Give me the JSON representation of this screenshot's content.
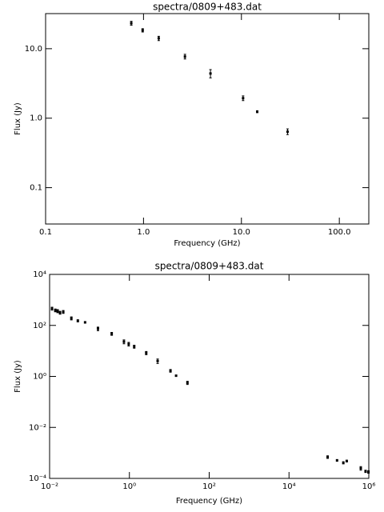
{
  "chart_data": [
    {
      "type": "scatter",
      "title": "spectra/0809+483.dat",
      "x_label": "Frequency (GHz)",
      "y_label": "Flux (Jy)",
      "log_x": true,
      "log_y": true,
      "color": "#000000",
      "x": [
        0.75,
        0.98,
        1.43,
        2.65,
        4.83,
        10.4,
        14.5,
        29.6
      ],
      "values": [
        23.3,
        18.4,
        14.1,
        7.7,
        4.4,
        1.94,
        1.24,
        0.64
      ],
      "errors": [
        1.5,
        1.0,
        1.0,
        0.6,
        0.6,
        0.15,
        0.04,
        0.06
      ],
      "xlim": [
        0.1,
        200
      ],
      "ylim": [
        0.03,
        32
      ],
      "xticks": [
        0.1,
        {
          "value": 1,
          "label": "1.0"
        },
        {
          "value": 10,
          "label": "10.0"
        },
        {
          "value": 100,
          "label": "100.0"
        }
      ],
      "yticks": [
        0.1,
        {
          "value": 1,
          "label": "1.0"
        },
        {
          "value": 10,
          "label": "10.0"
        }
      ]
    },
    {
      "type": "scatter",
      "title": "spectra/0809+483.dat",
      "x_label": "Frequency (GHz)",
      "y_label": "Flux (Jy)",
      "log_x": true,
      "log_y": true,
      "color": "#000000",
      "x": [
        0.0115,
        0.0139,
        0.0159,
        0.0183,
        0.022,
        0.0351,
        0.051,
        0.0775,
        0.163,
        0.36,
        0.73,
        0.96,
        1.32,
        2.64,
        5.1,
        10.7,
        14.8,
        28.5,
        93000,
        160000,
        230000,
        280000,
        630000,
        830000,
        980000
      ],
      "values": [
        457,
        390,
        365,
        316,
        340,
        190,
        152,
        132,
        74,
        47,
        23,
        18.5,
        14.8,
        8.3,
        4.0,
        1.66,
        1.07,
        0.56,
        0.00069,
        0.00051,
        0.00041,
        0.00048,
        0.00025,
        0.00019,
        0.00018
      ],
      "errors": [
        60,
        50,
        50,
        40,
        45,
        25,
        15,
        10,
        12,
        6,
        4,
        3,
        2,
        1.2,
        0.8,
        0.2,
        0.05,
        0.08,
        8e-05,
        4e-05,
        4e-05,
        4e-05,
        4e-05,
        2e-05,
        2e-05
      ],
      "xlim": [
        0.01,
        1000000
      ],
      "ylim": [
        0.0001,
        10000
      ],
      "xticks": [
        {
          "value": 0.01,
          "label": "10⁻²"
        },
        {
          "value": 1,
          "label": "10⁰"
        },
        {
          "value": 100,
          "label": "10²"
        },
        {
          "value": 10000,
          "label": "10⁴"
        },
        {
          "value": 1000000,
          "label": "10⁶"
        }
      ],
      "yticks": [
        {
          "value": 0.0001,
          "label": "10⁻⁴"
        },
        {
          "value": 0.01,
          "label": "10⁻²"
        },
        {
          "value": 1,
          "label": "10⁰"
        },
        {
          "value": 100,
          "label": "10²"
        },
        {
          "value": 10000,
          "label": "10⁴"
        }
      ]
    }
  ]
}
